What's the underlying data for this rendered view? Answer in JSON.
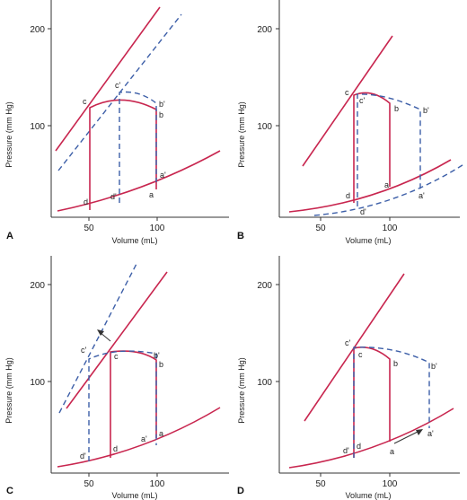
{
  "colors": {
    "solid": "#c8264f",
    "dashed": "#3d5fa8",
    "axis": "#333333"
  },
  "panels": [
    {
      "label": "A",
      "xlabel": "Volume (mL)",
      "ylabel": "Pressure (mm Hg)",
      "xticks": [
        {
          "v": 50,
          "t": "50"
        },
        {
          "v": 100,
          "t": "100"
        }
      ],
      "yticks": [
        {
          "v": 100,
          "t": "100"
        },
        {
          "v": 200,
          "t": "200"
        }
      ],
      "points": [
        {
          "name": "a",
          "text": "a"
        },
        {
          "name": "a-prime",
          "text": "a'"
        },
        {
          "name": "b",
          "text": "b"
        },
        {
          "name": "b-prime",
          "text": "b'"
        },
        {
          "name": "c",
          "text": "c"
        },
        {
          "name": "c-prime",
          "text": "c'"
        },
        {
          "name": "d",
          "text": "d"
        },
        {
          "name": "d-prime",
          "text": "d'"
        }
      ]
    },
    {
      "label": "B",
      "xlabel": "Volume (mL)",
      "ylabel": "Pressure (mm Hg)",
      "xticks": [
        {
          "v": 50,
          "t": "50"
        },
        {
          "v": 100,
          "t": "100"
        }
      ],
      "yticks": [
        {
          "v": 100,
          "t": "100"
        },
        {
          "v": 200,
          "t": "200"
        }
      ],
      "points": [
        {
          "name": "a",
          "text": "a"
        },
        {
          "name": "a-prime",
          "text": "a'"
        },
        {
          "name": "b",
          "text": "b"
        },
        {
          "name": "b-prime",
          "text": "b'"
        },
        {
          "name": "c",
          "text": "c"
        },
        {
          "name": "c-prime",
          "text": "c'"
        },
        {
          "name": "d",
          "text": "d"
        },
        {
          "name": "d-prime",
          "text": "d'"
        }
      ]
    },
    {
      "label": "C",
      "xlabel": "Volume (mL)",
      "ylabel": "Pressure (mm Hg)",
      "xticks": [
        {
          "v": 50,
          "t": "50"
        },
        {
          "v": 100,
          "t": "100"
        }
      ],
      "yticks": [
        {
          "v": 100,
          "t": "100"
        },
        {
          "v": 200,
          "t": "200"
        }
      ],
      "points": [
        {
          "name": "a",
          "text": "a"
        },
        {
          "name": "a-prime",
          "text": "a'"
        },
        {
          "name": "b",
          "text": "b"
        },
        {
          "name": "b-prime",
          "text": "b'"
        },
        {
          "name": "c",
          "text": "c"
        },
        {
          "name": "c-prime",
          "text": "c'"
        },
        {
          "name": "d",
          "text": "d"
        },
        {
          "name": "d-prime",
          "text": "d'"
        }
      ]
    },
    {
      "label": "D",
      "xlabel": "Volume (mL)",
      "ylabel": "Pressure (mm Hg)",
      "xticks": [
        {
          "v": 50,
          "t": "50"
        },
        {
          "v": 100,
          "t": "100"
        }
      ],
      "yticks": [
        {
          "v": 100,
          "t": "100"
        },
        {
          "v": 200,
          "t": "200"
        }
      ],
      "points": [
        {
          "name": "a",
          "text": "a"
        },
        {
          "name": "a-prime",
          "text": "a'"
        },
        {
          "name": "b",
          "text": "b"
        },
        {
          "name": "b-prime",
          "text": "b'"
        },
        {
          "name": "c",
          "text": "c"
        },
        {
          "name": "c-prime",
          "text": "c'"
        },
        {
          "name": "d",
          "text": "d"
        },
        {
          "name": "d-prime",
          "text": "d'"
        }
      ]
    }
  ]
}
